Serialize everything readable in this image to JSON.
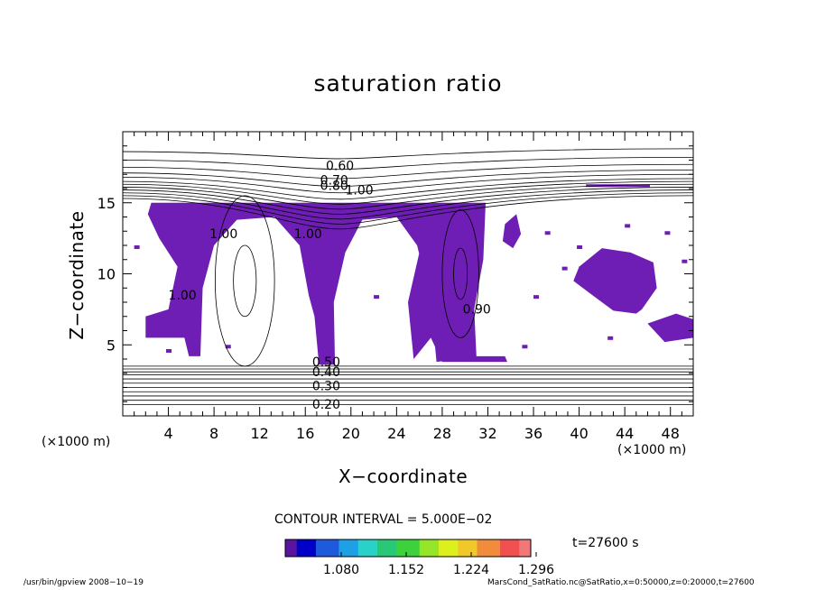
{
  "chart_data": {
    "type": "contour",
    "title": "saturation ratio",
    "xlabel": "X−coordinate",
    "ylabel": "Z−coordinate",
    "x_unit_left": "(×1000 m)",
    "x_unit_right": "(×1000 m)",
    "xlim": [
      0,
      50
    ],
    "ylim": [
      0,
      20
    ],
    "x_ticks": [
      4,
      8,
      12,
      16,
      20,
      24,
      28,
      32,
      36,
      40,
      44,
      48
    ],
    "y_ticks": [
      5,
      10,
      15
    ],
    "contour_labels": [
      "0.60",
      "0.70",
      "0.80",
      "1.00",
      "1.00",
      "1.00",
      "1.00",
      "0.90",
      "0.50",
      "0.40",
      "0.30",
      "0.20"
    ],
    "contour_interval": "CONTOUR INTERVAL = 5.000E−02",
    "colorbar": {
      "tick_labels": [
        "1.080",
        "1.152",
        "1.224",
        "1.296"
      ],
      "colors": [
        "#5a14a0",
        "#0000c8",
        "#1e5adc",
        "#1ea0e6",
        "#28d2c8",
        "#28c878",
        "#3cd23c",
        "#96e628",
        "#dcf01e",
        "#f0c828",
        "#f08c3c",
        "#f05050",
        "#f07878"
      ]
    },
    "fill_color": "#6e1eb4",
    "time_label": "t=27600 s"
  },
  "footer": {
    "left": "/usr/bin/gpview   2008−10−19",
    "right": "MarsCond_SatRatio.nc@SatRatio,x=0:50000,z=0:20000,t=27600"
  }
}
